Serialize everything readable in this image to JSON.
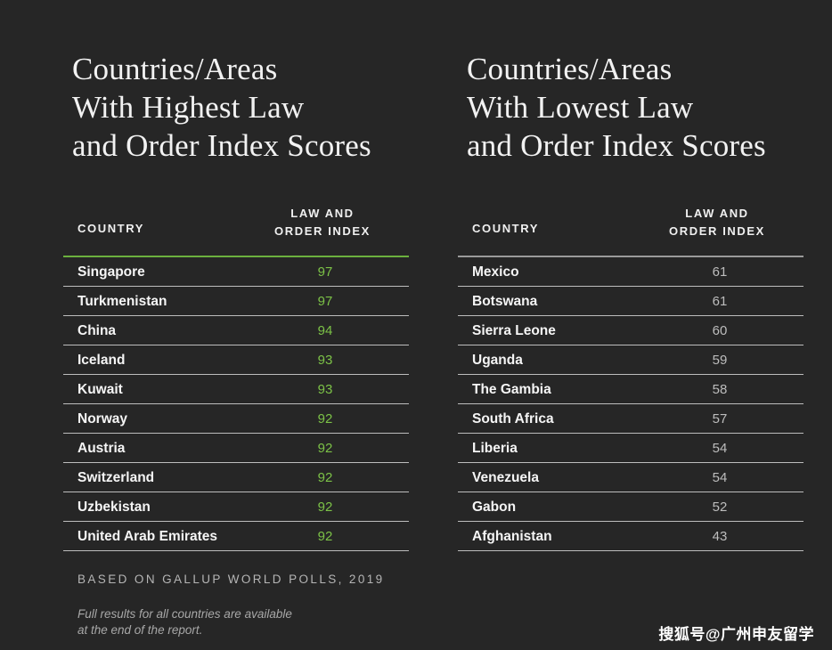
{
  "chart_data": [
    {
      "type": "table",
      "title": "Countries/Areas\nWith Highest Law\nand Order Index Scores",
      "columns": [
        "COUNTRY",
        "LAW AND\nORDER INDEX"
      ],
      "categories": [
        "Singapore",
        "Turkmenistan",
        "China",
        "Iceland",
        "Kuwait",
        "Norway",
        "Austria",
        "Switzerland",
        "Uzbekistan",
        "United Arab Emirates"
      ],
      "values": [
        97,
        97,
        94,
        93,
        93,
        92,
        92,
        92,
        92,
        92
      ],
      "accent_color": "#7cc247"
    },
    {
      "type": "table",
      "title": "Countries/Areas\nWith Lowest Law\nand Order Index Scores",
      "columns": [
        "COUNTRY",
        "LAW AND\nORDER INDEX"
      ],
      "categories": [
        "Mexico",
        "Botswana",
        "Sierra Leone",
        "Uganda",
        "The Gambia",
        "South Africa",
        "Liberia",
        "Venezuela",
        "Gabon",
        "Afghanistan"
      ],
      "values": [
        61,
        61,
        60,
        59,
        58,
        57,
        54,
        54,
        52,
        43
      ],
      "accent_color": "#bdbdbd"
    }
  ],
  "footer": {
    "source": "BASED ON GALLUP WORLD POLLS, 2019",
    "note": "Full results for all countries are available\nat the end of the report."
  },
  "watermark": "搜狐号@广州申友留学",
  "colors": {
    "background": "#262626",
    "highlight": "#7cc247"
  }
}
